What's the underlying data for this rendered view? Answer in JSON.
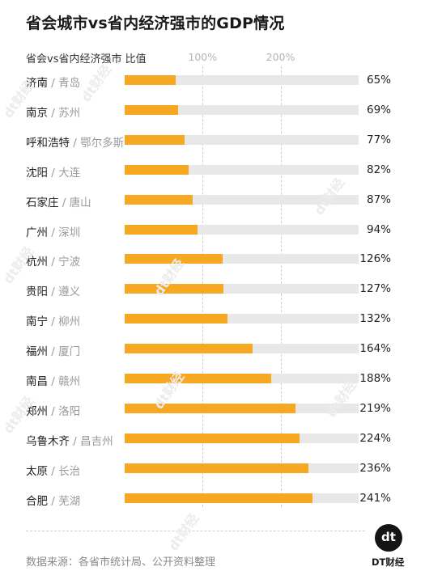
{
  "title": "省会城市vs省内经济强市的GDP情况",
  "header_label": "省会vs省内经济强市  比值",
  "brand": "DT财经",
  "logo_text": "dt",
  "watermark_text": "dt财经",
  "source": "数据来源：各省市统计局、公开资料整理",
  "colors": {
    "bar": "#f7a823",
    "track": "#e8e8e8",
    "city_text": "#9a9a9a"
  },
  "chart_data": {
    "type": "bar",
    "orientation": "horizontal",
    "title": "省会城市vs省内经济强市的GDP情况",
    "ylabel": "省会vs省内经济强市",
    "xlabel": "比值",
    "xlim": [
      0,
      300
    ],
    "xticks": [
      100,
      200
    ],
    "xtick_labels": [
      "100%",
      "200%"
    ],
    "grid": "dashed vertical at ticks",
    "categories": [
      {
        "province_city": "济南",
        "compare_city": "青岛"
      },
      {
        "province_city": "南京",
        "compare_city": "苏州"
      },
      {
        "province_city": "呼和浩特",
        "compare_city": "鄂尔多斯"
      },
      {
        "province_city": "沈阳",
        "compare_city": "大连"
      },
      {
        "province_city": "石家庄",
        "compare_city": "唐山"
      },
      {
        "province_city": "广州",
        "compare_city": "深圳"
      },
      {
        "province_city": "杭州",
        "compare_city": "宁波"
      },
      {
        "province_city": "贵阳",
        "compare_city": "遵义"
      },
      {
        "province_city": "南宁",
        "compare_city": "柳州"
      },
      {
        "province_city": "福州",
        "compare_city": "厦门"
      },
      {
        "province_city": "南昌",
        "compare_city": "赣州"
      },
      {
        "province_city": "郑州",
        "compare_city": "洛阳"
      },
      {
        "province_city": "乌鲁木齐",
        "compare_city": "昌吉州"
      },
      {
        "province_city": "太原",
        "compare_city": "长治"
      },
      {
        "province_city": "合肥",
        "compare_city": "芜湖"
      }
    ],
    "values": [
      65,
      69,
      77,
      82,
      87,
      94,
      126,
      127,
      132,
      164,
      188,
      219,
      224,
      236,
      241
    ],
    "value_labels": [
      "65%",
      "69%",
      "77%",
      "82%",
      "87%",
      "94%",
      "126%",
      "127%",
      "132%",
      "164%",
      "188%",
      "219%",
      "224%",
      "236%",
      "241%"
    ]
  }
}
